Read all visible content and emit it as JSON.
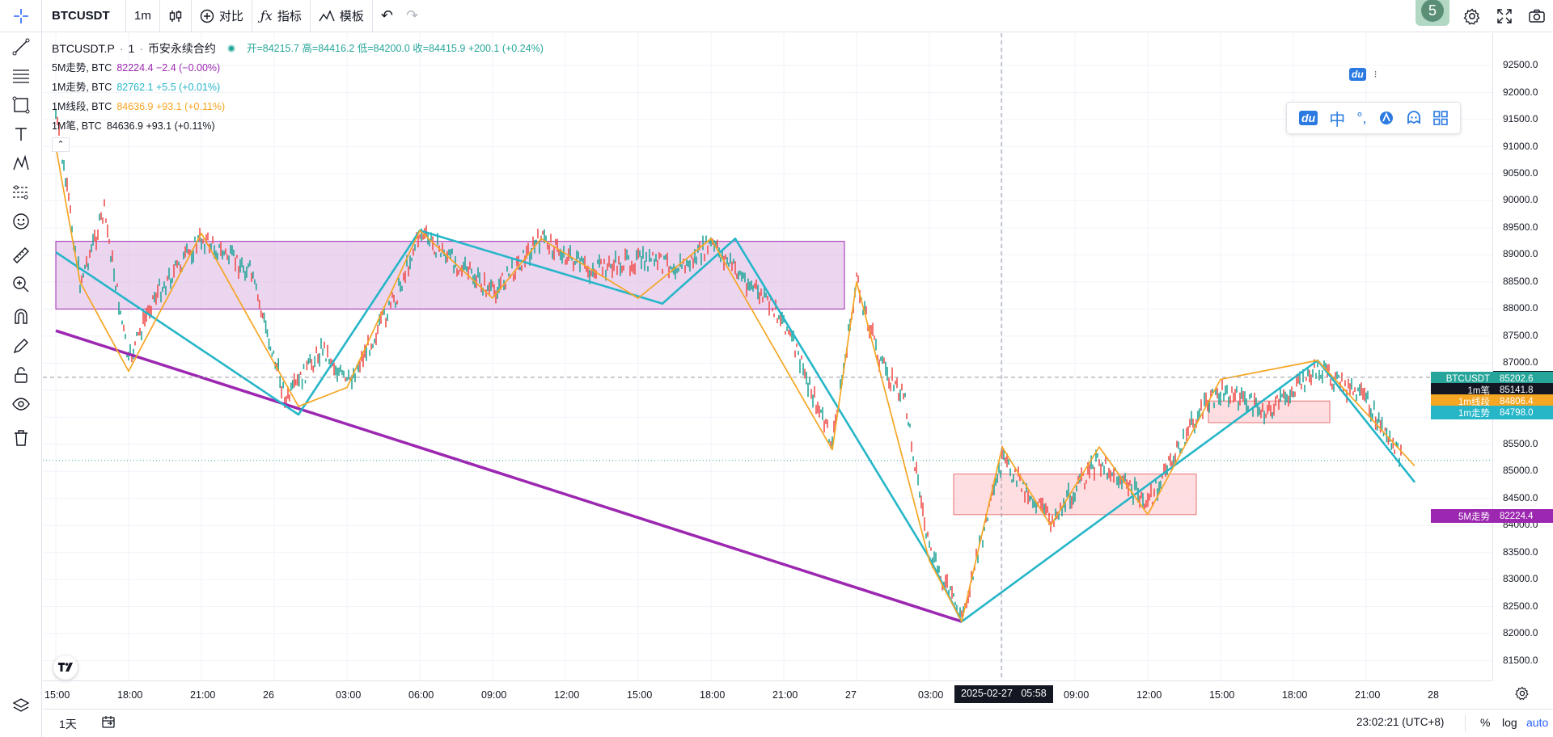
{
  "toolbar": {
    "symbol": "BTCUSDT",
    "interval": "1m",
    "compare_label": "对比",
    "indicators_label": "指标",
    "templates_label": "模板",
    "notification_count": "5"
  },
  "legend": {
    "symbol": "BTCUSDT.P",
    "interval": "1",
    "exchange": "币安永续合约",
    "ohlc": "开=84215.7 高=84416.2 低=84200.0 收=84415.9 +200.1 (+0.24%)",
    "studies": [
      {
        "name": "5M走势, BTC",
        "value": "82224.4 −2.4 (−0.00%)",
        "color": "#9c27b0"
      },
      {
        "name": "1M走势, BTC",
        "value": "82762.1 +5.5 (+0.01%)",
        "color": "#26b6c8"
      },
      {
        "name": "1M线段, BTC",
        "value": "84636.9 +93.1 (+0.11%)",
        "color": "#f5a623"
      },
      {
        "name": "1M笔, BTC",
        "value": "84636.9 +93.1 (+0.11%)",
        "color": "#131722"
      }
    ]
  },
  "price_axis": {
    "ticks": [
      "92500.0",
      "92000.0",
      "91500.0",
      "91000.0",
      "90500.0",
      "90000.0",
      "89500.0",
      "89000.0",
      "88500.0",
      "88000.0",
      "87500.0",
      "87000.0",
      "86500.0",
      "86000.0",
      "85500.0",
      "85000.0",
      "84500.0",
      "84000.0",
      "83500.0",
      "83000.0",
      "82500.0",
      "82000.0",
      "81500.0"
    ],
    "crosshair_price": "86737.6",
    "labels": [
      {
        "tag": "BTCUSDT",
        "value": "85202.6",
        "color": "#26a69a"
      },
      {
        "tag": "1m笔",
        "value": "85141.8",
        "color": "#131722"
      },
      {
        "tag": "1m线段",
        "value": "84806.4",
        "color": "#f5a623"
      },
      {
        "tag": "1m走势",
        "value": "84798.0",
        "color": "#26b6c8"
      },
      {
        "tag": "5M走势",
        "value": "82224.4",
        "color": "#9c27b0"
      }
    ]
  },
  "time_axis": {
    "ticks": [
      "15:00",
      "18:00",
      "21:00",
      "26",
      "03:00",
      "06:00",
      "09:00",
      "12:00",
      "15:00",
      "18:00",
      "21:00",
      "27",
      "03:00",
      "09:00",
      "12:00",
      "15:00",
      "18:00",
      "21:00",
      "28"
    ],
    "crosshair_time": "2025-02-27   05:58"
  },
  "bottom": {
    "range": "1天",
    "clock": "23:02:21 (UTC+8)",
    "percent": "%",
    "log": "log",
    "auto": "auto"
  },
  "ime": {
    "logo": "du",
    "zh": "中"
  },
  "chart_data": {
    "type": "candlestick",
    "symbol": "BTCUSDT.P",
    "ylim": [
      81300,
      92800
    ],
    "boxes": [
      {
        "from": "02-25 15:00",
        "to": "02-26 23:30",
        "low": 88000,
        "high": 89250,
        "color": "#e1bee7"
      },
      {
        "from": "02-27 04:00",
        "to": "02-27 14:00",
        "low": 84200,
        "high": 84950,
        "color": "#ffcdd2"
      },
      {
        "from": "02-27 14:30",
        "to": "02-27 19:30",
        "low": 85900,
        "high": 86300,
        "color": "#ffcdd2"
      }
    ],
    "series": [
      {
        "name": "5M走势",
        "color": "#9c27b0",
        "points": [
          [
            "02-25 15:00",
            87600
          ],
          [
            "02-27 04:20",
            82224
          ]
        ]
      },
      {
        "name": "1M走势",
        "color": "#26b6c8",
        "points": [
          [
            "02-25 15:00",
            89050
          ],
          [
            "02-26 01:00",
            86050
          ],
          [
            "02-26 06:00",
            89450
          ],
          [
            "02-26 16:00",
            88100
          ],
          [
            "02-26 19:00",
            89300
          ],
          [
            "02-27 03:00",
            83400
          ],
          [
            "02-27 04:20",
            82224
          ],
          [
            "02-27 19:00",
            87050
          ],
          [
            "02-27 23:00",
            84800
          ]
        ]
      },
      {
        "name": "1M线段",
        "color": "#f5a623",
        "points": [
          [
            "02-25 15:00",
            91000
          ],
          [
            "02-25 16:00",
            88500
          ],
          [
            "02-25 18:00",
            86850
          ],
          [
            "02-25 21:00",
            89400
          ],
          [
            "02-26 01:00",
            86200
          ],
          [
            "02-26 03:00",
            86550
          ],
          [
            "02-26 06:00",
            89450
          ],
          [
            "02-26 09:00",
            88200
          ],
          [
            "02-26 11:00",
            89300
          ],
          [
            "02-26 15:00",
            88200
          ],
          [
            "02-26 18:00",
            89300
          ],
          [
            "02-26 23:00",
            85400
          ],
          [
            "02-27 00:00",
            88500
          ],
          [
            "02-27 03:00",
            83350
          ],
          [
            "02-27 04:20",
            82224
          ],
          [
            "02-27 06:00",
            85450
          ],
          [
            "02-27 08:00",
            84000
          ],
          [
            "02-27 10:00",
            85450
          ],
          [
            "02-27 12:00",
            84200
          ],
          [
            "02-27 15:00",
            86700
          ],
          [
            "02-27 19:00",
            87050
          ],
          [
            "02-27 23:00",
            85100
          ]
        ]
      },
      {
        "name": "BTCUSDT",
        "color": "#c62828",
        "approx_close": [
          [
            "02-25 15:00",
            91600
          ],
          [
            "02-25 16:00",
            88500
          ],
          [
            "02-25 17:00",
            89800
          ],
          [
            "02-25 18:00",
            87000
          ],
          [
            "02-25 19:00",
            88200
          ],
          [
            "02-25 21:00",
            89300
          ],
          [
            "02-25 23:00",
            88700
          ],
          [
            "02-26 00:30",
            86300
          ],
          [
            "02-26 02:00",
            87300
          ],
          [
            "02-26 03:00",
            86600
          ],
          [
            "02-26 05:00",
            88200
          ],
          [
            "02-26 06:00",
            89400
          ],
          [
            "02-26 09:00",
            88300
          ],
          [
            "02-26 11:00",
            89300
          ],
          [
            "02-26 13:00",
            88700
          ],
          [
            "02-26 15:00",
            88900
          ],
          [
            "02-26 17:00",
            88800
          ],
          [
            "02-26 18:00",
            89200
          ],
          [
            "02-26 21:00",
            87800
          ],
          [
            "02-26 23:00",
            85500
          ],
          [
            "02-27 00:00",
            88500
          ],
          [
            "02-27 01:00",
            87000
          ],
          [
            "02-27 02:00",
            86300
          ],
          [
            "02-27 03:00",
            83500
          ],
          [
            "02-27 04:20",
            82300
          ],
          [
            "02-27 06:00",
            85200
          ],
          [
            "02-27 08:00",
            84100
          ],
          [
            "02-27 10:00",
            85200
          ],
          [
            "02-27 12:00",
            84400
          ],
          [
            "02-27 14:00",
            86000
          ],
          [
            "02-27 15:00",
            86500
          ],
          [
            "02-27 17:00",
            86100
          ],
          [
            "02-27 19:00",
            86900
          ],
          [
            "02-27 21:00",
            86300
          ],
          [
            "02-27 22:30",
            85200
          ]
        ]
      }
    ]
  }
}
